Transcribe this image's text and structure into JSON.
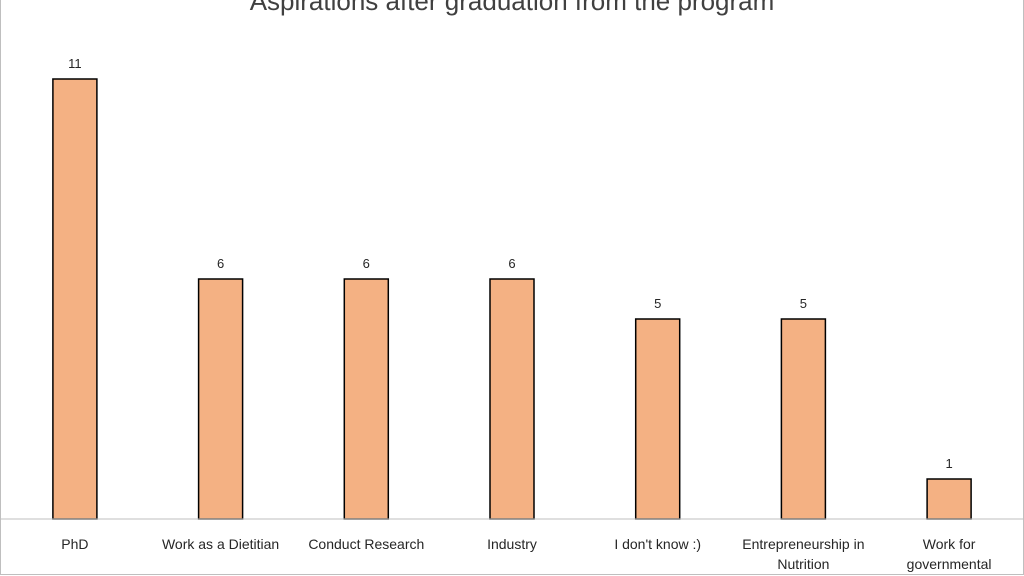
{
  "chart_data": {
    "type": "bar",
    "title": "Aspirations after graduation from the program",
    "xlabel": "",
    "ylabel": "",
    "ylim": [
      0,
      12
    ],
    "grid": false,
    "legend": "none",
    "categories": [
      [
        "PhD"
      ],
      [
        "Work as a Dietitian"
      ],
      [
        "Conduct Research"
      ],
      [
        "Industry"
      ],
      [
        "I don't know :)"
      ],
      [
        "Entrepreneurship in",
        "Nutrition"
      ],
      [
        "Work for",
        "governmental"
      ]
    ],
    "values": [
      11,
      6,
      6,
      6,
      5,
      5,
      1
    ],
    "colors": {
      "bar_fill": "#F4B183",
      "bar_stroke": "#000000",
      "axis": "#bfbfbf"
    }
  }
}
